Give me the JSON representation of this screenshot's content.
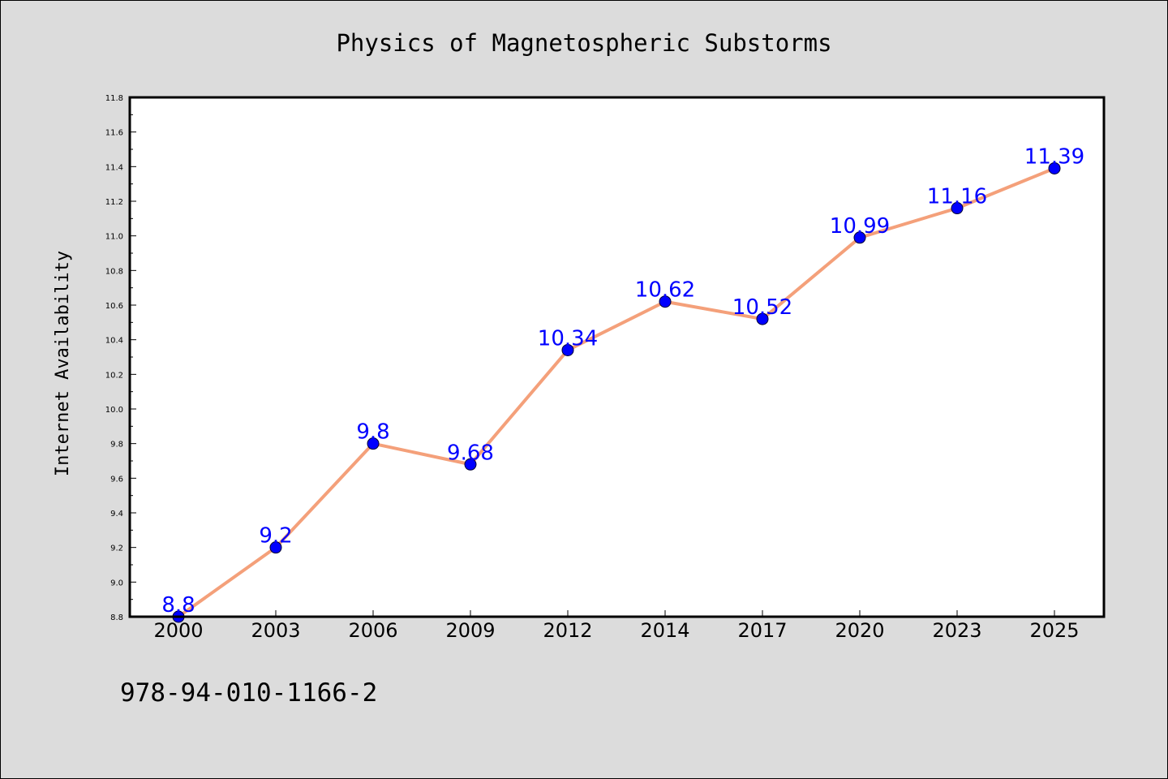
{
  "chart_data": {
    "type": "line",
    "title": "Physics of Magnetospheric Substorms",
    "xlabel": "",
    "ylabel": "Internet Availability",
    "categories": [
      "2000",
      "2003",
      "2006",
      "2009",
      "2012",
      "2014",
      "2017",
      "2020",
      "2023",
      "2025"
    ],
    "values": [
      8.8,
      9.2,
      9.8,
      9.68,
      10.34,
      10.62,
      10.52,
      10.99,
      11.16,
      11.39
    ],
    "data_labels": [
      "8.8",
      "9.2",
      "9.8",
      "9.68",
      "10.34",
      "10.62",
      "10.52",
      "10.99",
      "11.16",
      "11.39"
    ],
    "ylim": [
      8.8,
      11.8
    ],
    "yticks": [
      "8.8",
      "9.0",
      "9.2",
      "9.4",
      "9.6",
      "9.8",
      "10.0",
      "10.2",
      "10.4",
      "10.6",
      "10.8",
      "11.0",
      "11.2",
      "11.4",
      "11.6",
      "11.8"
    ],
    "grid": false,
    "legend": "none",
    "colors": {
      "line": "#f4a07a",
      "marker": "#0000ff",
      "label": "#0000ff",
      "background": "#dcdcdc",
      "plot_background": "#ffffff"
    }
  },
  "footer": {
    "isbn": "978-94-010-1166-2"
  }
}
